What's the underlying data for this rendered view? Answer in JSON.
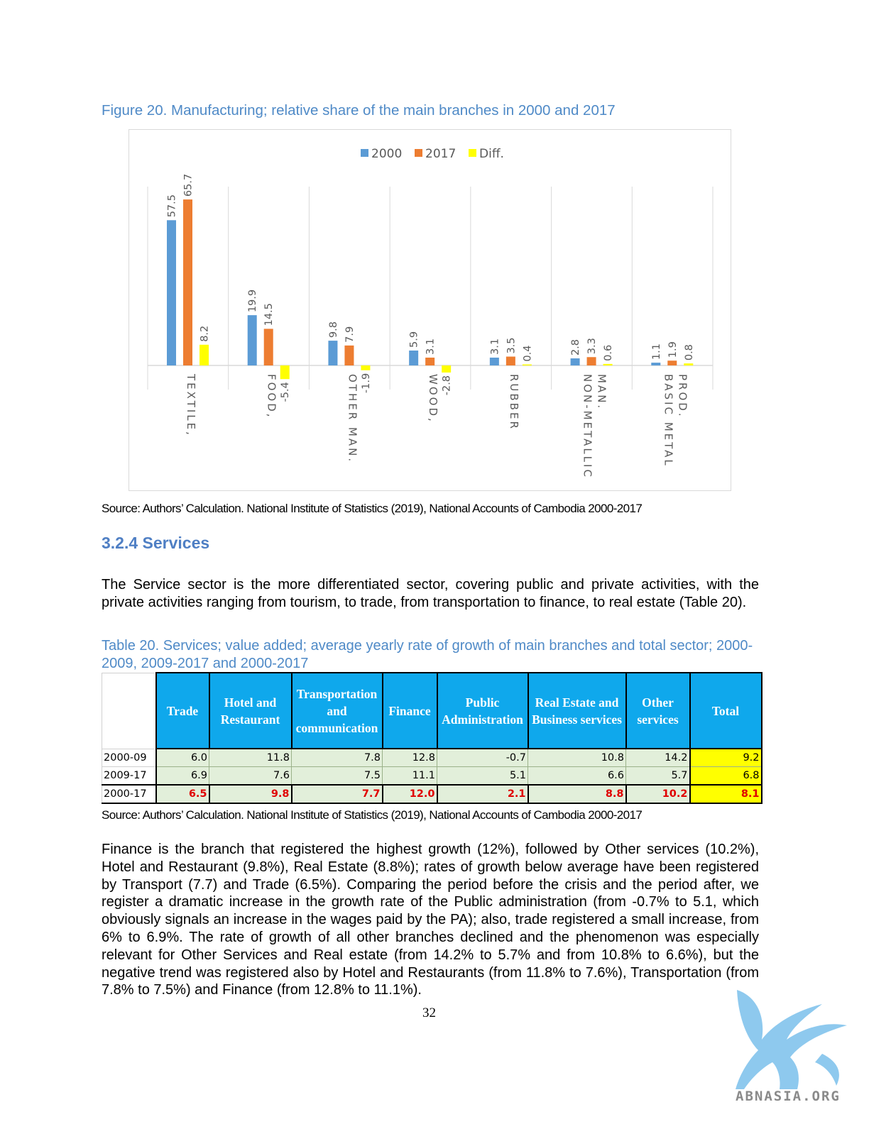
{
  "figure": {
    "caption": "Figure 20. Manufacturing; relative share of the main branches in 2000 and 2017"
  },
  "chart_data": {
    "type": "bar",
    "title": "",
    "categories": [
      "TEXTILE,",
      "FOOD,",
      "OTHER MAN.",
      "WOOD,",
      "RUBBER",
      "NON-METALLIC MAN.",
      "BASIC METAL PROD."
    ],
    "category_lines": [
      [
        "TEXTILE,"
      ],
      [
        "FOOD,"
      ],
      [
        "OTHER MAN."
      ],
      [
        "WOOD,"
      ],
      [
        "RUBBER"
      ],
      [
        "NON-METALLIC",
        "MAN."
      ],
      [
        "BASIC METAL",
        "PROD."
      ]
    ],
    "series": [
      {
        "name": "2000",
        "color": "#5b9bd5",
        "values": [
          57.5,
          19.9,
          9.8,
          5.9,
          3.1,
          2.8,
          1.1
        ]
      },
      {
        "name": "2017",
        "color": "#ed7d31",
        "values": [
          65.7,
          14.5,
          7.9,
          3.1,
          3.5,
          3.3,
          1.9
        ]
      },
      {
        "name": "Diff.",
        "color": "#ffff00",
        "values": [
          8.2,
          -5.4,
          -1.9,
          -2.8,
          0.4,
          0.6,
          0.8
        ]
      }
    ],
    "value_labels": [
      [
        "57.5",
        "19.9",
        "9.8",
        "5.9",
        "3.1",
        "2.8",
        "1.1"
      ],
      [
        "65.7",
        "14.5",
        "7.9",
        "3.1",
        "3.5",
        "3.3",
        "1.9"
      ],
      [
        "8.2",
        "-5.4",
        "-1.9",
        "-2.8",
        "0.4",
        "0.6",
        "0.8"
      ]
    ],
    "legend": "top",
    "grid": "vertical",
    "ylim": [
      -10,
      70
    ]
  },
  "source1": "Source: Authors’ Calculation. National Institute of Statistics (2019), National Accounts of Cambodia 2000-2017",
  "section_title": "3.2.4 Services",
  "para1": "The Service sector is the more differentiated sector, covering public and private activities, with the private activities ranging from tourism, to trade, from transportation to finance, to real estate (Table 20).",
  "table": {
    "caption": "Table 20. Services; value added; average yearly rate of growth of main branches and total sector; 2000-2009, 2009-2017 and 2000-2017",
    "headers": [
      "Trade",
      "Hotel and Restaurant",
      "Transportation and communication",
      "Finance",
      "Public Administration",
      "Real Estate and Business services",
      "Other services",
      "Total"
    ],
    "rows": [
      {
        "label": "2000-09",
        "values": [
          "6.0",
          "11.8",
          "7.8",
          "12.8",
          "-0.7",
          "10.8",
          "14.2",
          "9.2"
        ]
      },
      {
        "label": "2009-17",
        "values": [
          "6.9",
          "7.6",
          "7.5",
          "11.1",
          "5.1",
          "6.6",
          "5.7",
          "6.8"
        ]
      },
      {
        "label": "2000-17",
        "values": [
          "6.5",
          "9.8",
          "7.7",
          "12.0",
          "2.1",
          "8.8",
          "10.2",
          "8.1"
        ]
      }
    ],
    "colors": {
      "header": "#0fa8ec",
      "cells": "#e2efda",
      "total": "#ffff00",
      "highlight_text": "#e00000"
    }
  },
  "source2": "Source: Authors’ Calculation. National Institute of Statistics (2019), National Accounts of Cambodia 2000-2017",
  "para2": "Finance is the branch that registered the highest growth (12%), followed by Other services (10.2%), Hotel and Restaurant (9.8%), Real Estate (8.8%); rates of growth below average have been registered by Transport (7.7) and Trade (6.5%). Comparing the period before the crisis and the period after, we register a dramatic increase in the growth rate of the Public administration (from -0.7% to 5.1, which obviously signals an increase in the wages paid by the PA); also, trade registered a small increase, from 6% to 6.9%. The rate of growth of all other branches declined and the phenomenon was especially relevant for Other Services and Real estate (from 14.2% to 5.7% and from 10.8% to 6.6%), but the negative trend was registered also by Hotel and Restaurants (from 11.8% to 7.6%), Transportation (from 7.8% to 7.5%) and Finance (from 12.8% to 11.1%).",
  "page_number": "32",
  "logo": {
    "text": "ABNASIA.ORG",
    "icon": "griffin-icon"
  }
}
